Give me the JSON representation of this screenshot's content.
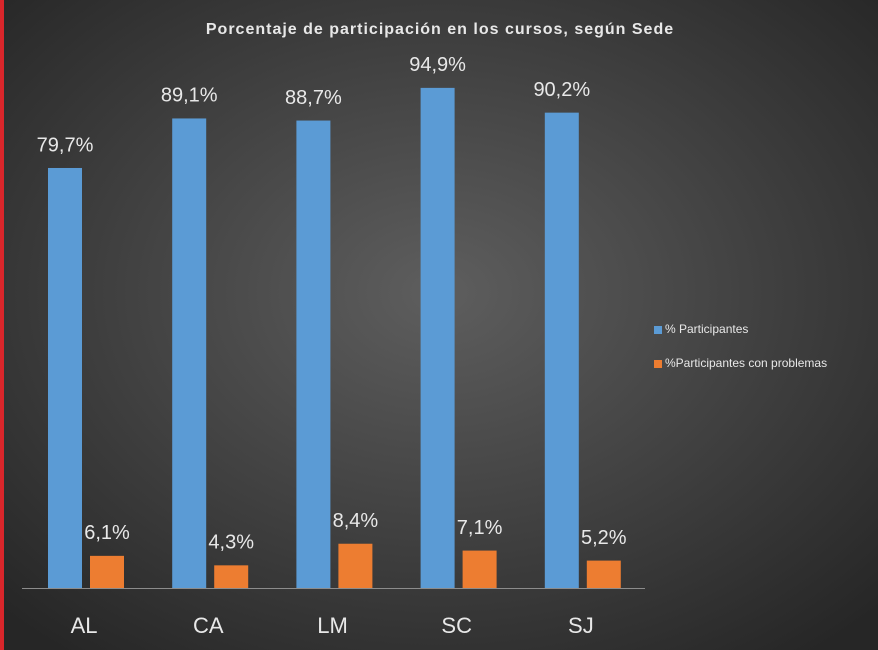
{
  "chart_data": {
    "type": "bar",
    "title": "Porcentaje  de  participación  en los cursos,  según Sede",
    "categories": [
      "AL",
      "CA",
      "LM",
      "SC",
      "SJ"
    ],
    "series": [
      {
        "name": "% Participantes",
        "color": "#5b9bd5",
        "values": [
          79.7,
          89.1,
          88.7,
          94.9,
          90.2
        ],
        "value_labels": [
          "79,7%",
          "89,1%",
          "88,7%",
          "94,9%",
          "90,2%"
        ]
      },
      {
        "name": "%Participantes con problemas",
        "color": "#ed7d31",
        "values": [
          6.1,
          4.3,
          8.4,
          7.1,
          5.2
        ],
        "value_labels": [
          "6,1%",
          "4,3%",
          "8,4%",
          "7,1%",
          "5,2%"
        ]
      }
    ],
    "ylim": [
      0,
      100
    ],
    "legend": "right"
  }
}
